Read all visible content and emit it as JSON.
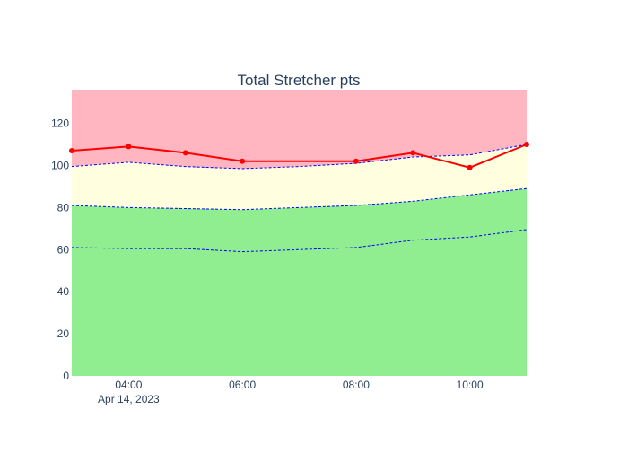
{
  "chart_data": {
    "type": "line",
    "title": "Total Stretcher pts",
    "xlabel": "",
    "ylabel": "",
    "x": [
      "03:00",
      "04:00",
      "05:00",
      "06:00",
      "07:00",
      "08:00",
      "09:00",
      "10:00",
      "11:00"
    ],
    "x_ticks": [
      "04:00",
      "06:00",
      "08:00",
      "10:00"
    ],
    "x_sub_label": "Apr 14, 2023",
    "xlim": [
      "03:00",
      "11:00"
    ],
    "y_ticks": [
      0,
      20,
      40,
      60,
      80,
      100,
      120
    ],
    "ylim": [
      0,
      136
    ],
    "grid": false,
    "legend": "none",
    "bands": [
      {
        "fill": "#90ee90",
        "lower": "zero",
        "upper_values": [
          81,
          80,
          79.5,
          79,
          80,
          81,
          83,
          86,
          89
        ]
      },
      {
        "fill": "#ffffe0",
        "lower_values": [
          81,
          80,
          79.5,
          79,
          80,
          81,
          83,
          86,
          89
        ],
        "upper_values": [
          99.5,
          101.5,
          99.5,
          98.5,
          99.5,
          101,
          104,
          105,
          110
        ]
      },
      {
        "fill": "#ffb6c1",
        "lower_values": [
          99.5,
          101.5,
          99.5,
          98.5,
          99.5,
          101,
          104,
          105,
          110
        ],
        "upper": "top"
      }
    ],
    "reference_lines": [
      {
        "color": "#0000ff",
        "dash": "dashed",
        "values": [
          61,
          60.5,
          60.5,
          59,
          60,
          61,
          64.5,
          66,
          69.5
        ]
      },
      {
        "color": "#0000ff",
        "dash": "dashed",
        "values": [
          81,
          80,
          79.5,
          79,
          80,
          81,
          83,
          86,
          89
        ]
      },
      {
        "color": "#0000ff",
        "dash": "dashed",
        "values": [
          99.5,
          101.5,
          99.5,
          98.5,
          99.5,
          101,
          104,
          105,
          110
        ]
      }
    ],
    "series": [
      {
        "color": "#ff0000",
        "mode": "lines+markers",
        "x": [
          "03:00",
          "04:00",
          "05:00",
          "06:00",
          "08:00",
          "09:00",
          "10:00",
          "11:00"
        ],
        "values": [
          107,
          109,
          106,
          102,
          102,
          106,
          99,
          110
        ]
      }
    ]
  }
}
